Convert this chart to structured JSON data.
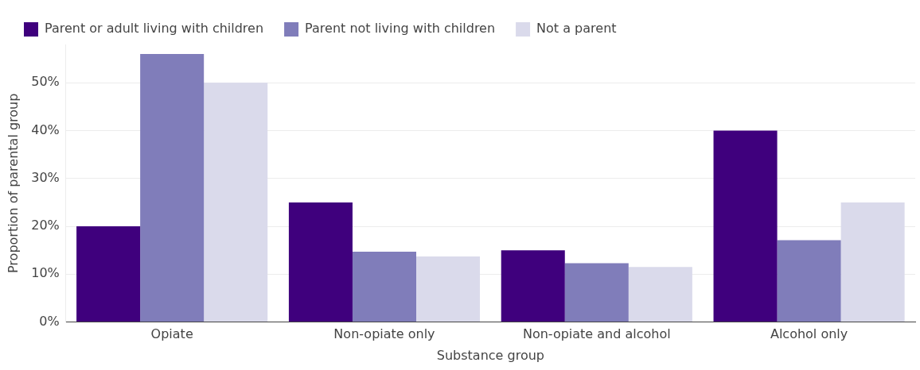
{
  "chart_data": {
    "type": "bar",
    "xlabel": "Substance group",
    "ylabel": "Proportion of parental group",
    "categories": [
      "Opiate",
      "Non-opiate only",
      "Non-opiate and alcohol",
      "Alcohol only"
    ],
    "series": [
      {
        "name": "Parent or adult living with children",
        "color": "#3f007d",
        "values": [
          20,
          25,
          15,
          40
        ]
      },
      {
        "name": "Parent not living with children",
        "color": "#807dba",
        "values": [
          56,
          14.7,
          12.3,
          17.1
        ]
      },
      {
        "name": "Not a parent",
        "color": "#dadaeb",
        "values": [
          50,
          13.7,
          11.5,
          25
        ]
      }
    ],
    "ylim": [
      0,
      58
    ],
    "yticks": [
      {
        "value": 0,
        "label": "0%"
      },
      {
        "value": 10,
        "label": "10%"
      },
      {
        "value": 20,
        "label": "20%"
      },
      {
        "value": 30,
        "label": "30%"
      },
      {
        "value": 40,
        "label": "40%"
      },
      {
        "value": 50,
        "label": "50%"
      }
    ],
    "grid": "y",
    "legend": "top"
  }
}
